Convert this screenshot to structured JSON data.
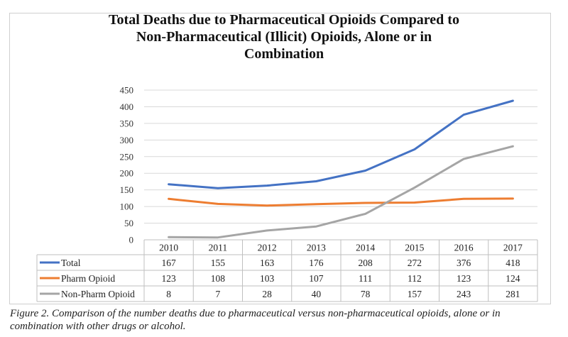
{
  "chart_data": {
    "type": "line",
    "title_lines": [
      "Total Deaths due to Pharmaceutical Opioids Compared to",
      "Non-Pharmaceutical (Illicit) Opioids, Alone or in",
      "Combination"
    ],
    "x": [
      "2010",
      "2011",
      "2012",
      "2013",
      "2014",
      "2015",
      "2016",
      "2017"
    ],
    "ylim": [
      0,
      450
    ],
    "yticks": [
      0,
      50,
      100,
      150,
      200,
      250,
      300,
      350,
      400,
      450
    ],
    "grid": true,
    "legend": "data-table",
    "series": [
      {
        "name": "Total",
        "color": "#4472C4",
        "values": [
          167,
          155,
          163,
          176,
          208,
          272,
          376,
          418
        ]
      },
      {
        "name": "Pharm Opioid",
        "color": "#ED7D31",
        "values": [
          123,
          108,
          103,
          107,
          111,
          112,
          123,
          124
        ]
      },
      {
        "name": "Non-Pharm Opioid",
        "color": "#A5A5A5",
        "values": [
          8,
          7,
          28,
          40,
          78,
          157,
          243,
          281
        ]
      }
    ]
  },
  "caption": {
    "label": "Figure 2",
    "line1": "Figure 2. Comparison of the number deaths due to pharmaceutical versus non-pharmaceutical opioids, alone or in",
    "line2": "combination with other drugs or alcohol."
  }
}
